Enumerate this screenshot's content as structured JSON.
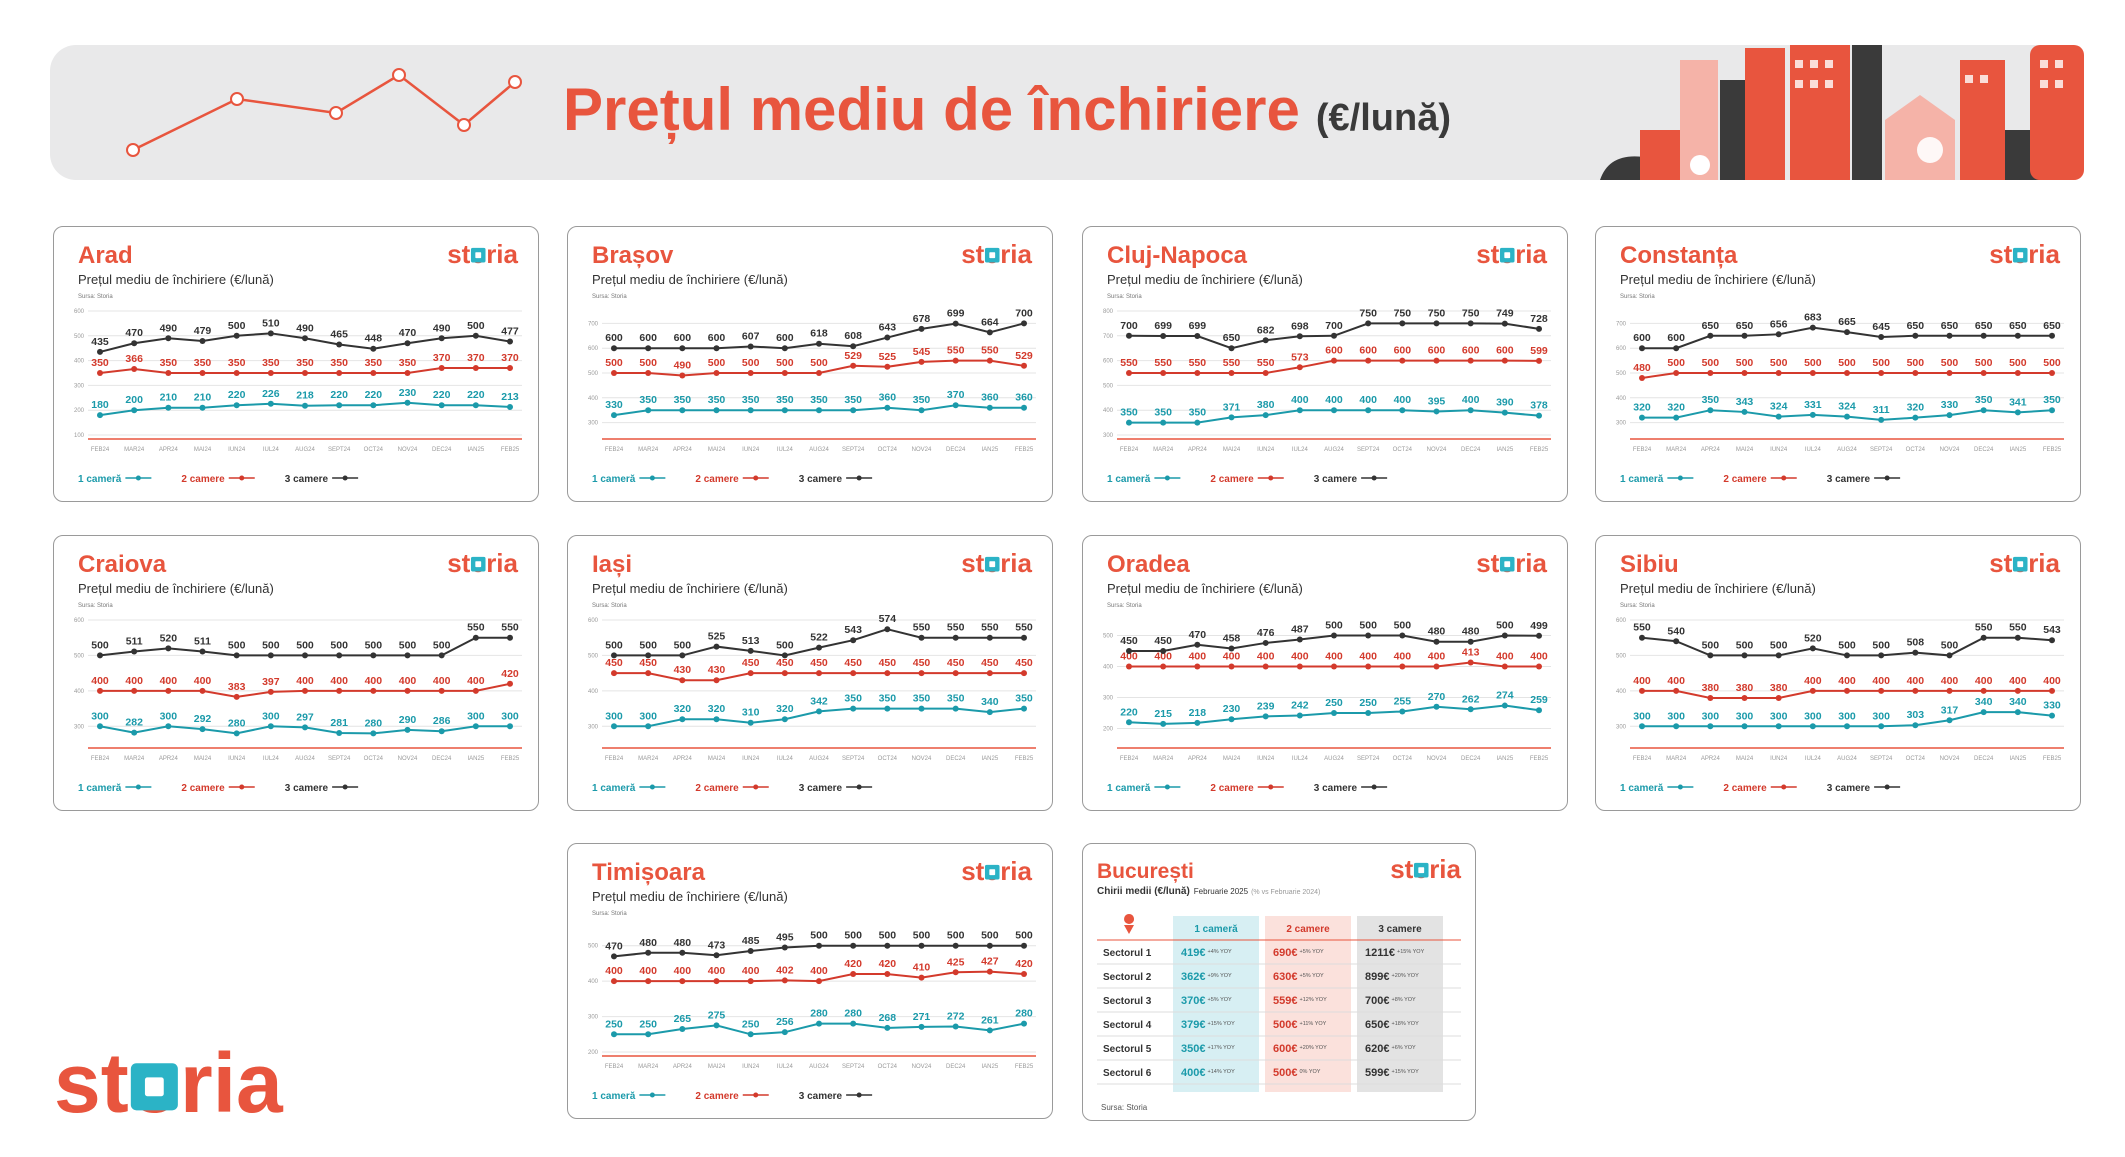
{
  "header": {
    "title": "Prețul mediu de închiriere",
    "unit": "(€/lună)"
  },
  "brand": "storia",
  "chart_data": [
    {
      "type": "line",
      "title": "Arad",
      "subtitle": "Prețul mediu de închiriere (€/lună)",
      "source": "Sursa: Storia",
      "categories": [
        "FEB24",
        "MAR24",
        "APR24",
        "MAI24",
        "IUN24",
        "IUL24",
        "AUG24",
        "SEPT24",
        "OCT24",
        "NOV24",
        "DEC24",
        "IAN25",
        "FEB25"
      ],
      "series": [
        {
          "name": "1 cameră",
          "color": "#1b9aaa",
          "values": [
            180,
            200,
            210,
            210,
            220,
            226,
            218,
            220,
            220,
            230,
            220,
            220,
            213
          ]
        },
        {
          "name": "2 camere",
          "color": "#d33a2c",
          "values": [
            350,
            366,
            350,
            350,
            350,
            350,
            350,
            350,
            350,
            350,
            370,
            370,
            370
          ]
        },
        {
          "name": "3 camere",
          "color": "#333333",
          "values": [
            435,
            470,
            490,
            479,
            500,
            510,
            490,
            465,
            448,
            470,
            490,
            500,
            477
          ]
        }
      ],
      "ylim": [
        100,
        600
      ],
      "yticks": [
        100,
        200,
        300,
        400,
        500,
        600
      ],
      "grid": true
    },
    {
      "type": "line",
      "title": "Brașov",
      "subtitle": "Prețul mediu de închiriere (€/lună)",
      "source": "Sursa: Storia",
      "categories": [
        "FEB24",
        "MAR24",
        "APR24",
        "MAI24",
        "IUN24",
        "IUL24",
        "AUG24",
        "SEPT24",
        "OCT24",
        "NOV24",
        "DEC24",
        "IAN25",
        "FEB25"
      ],
      "series": [
        {
          "name": "1 cameră",
          "color": "#1b9aaa",
          "values": [
            330,
            350,
            350,
            350,
            350,
            350,
            350,
            350,
            360,
            350,
            370,
            360,
            360
          ]
        },
        {
          "name": "2 camere",
          "color": "#d33a2c",
          "values": [
            500,
            500,
            490,
            500,
            500,
            500,
            500,
            529,
            525,
            545,
            550,
            550,
            529
          ]
        },
        {
          "name": "3 camere",
          "color": "#333333",
          "values": [
            600,
            600,
            600,
            600,
            607,
            600,
            618,
            608,
            643,
            678,
            699,
            664,
            700
          ]
        }
      ],
      "ylim": [
        250,
        750
      ],
      "yticks": [
        300,
        400,
        500,
        600,
        700
      ],
      "grid": true
    },
    {
      "type": "line",
      "title": "Cluj-Napoca",
      "subtitle": "Prețul mediu de închiriere (€/lună)",
      "source": "Sursa: Storia",
      "categories": [
        "FEB24",
        "MAR24",
        "APR24",
        "MAI24",
        "IUN24",
        "IUL24",
        "AUG24",
        "SEPT24",
        "OCT24",
        "NOV24",
        "DEC24",
        "IAN25",
        "FEB25"
      ],
      "series": [
        {
          "name": "1 cameră",
          "color": "#1b9aaa",
          "values": [
            350,
            350,
            350,
            371,
            380,
            400,
            400,
            400,
            400,
            395,
            400,
            390,
            378
          ]
        },
        {
          "name": "2 camere",
          "color": "#d33a2c",
          "values": [
            550,
            550,
            550,
            550,
            550,
            573,
            600,
            600,
            600,
            600,
            600,
            600,
            599
          ]
        },
        {
          "name": "3 camere",
          "color": "#333333",
          "values": [
            700,
            699,
            699,
            650,
            682,
            698,
            700,
            750,
            750,
            750,
            750,
            749,
            728
          ]
        }
      ],
      "ylim": [
        300,
        800
      ],
      "yticks": [
        300,
        400,
        500,
        600,
        700,
        800
      ],
      "grid": true
    },
    {
      "type": "line",
      "title": "Constanța",
      "subtitle": "Prețul mediu de închiriere (€/lună)",
      "source": "Sursa: Storia",
      "categories": [
        "FEB24",
        "MAR24",
        "APR24",
        "MAI24",
        "IUN24",
        "IUL24",
        "AUG24",
        "SEPT24",
        "OCT24",
        "NOV24",
        "DEC24",
        "IAN25",
        "FEB25"
      ],
      "series": [
        {
          "name": "1 cameră",
          "color": "#1b9aaa",
          "values": [
            320,
            320,
            350,
            343,
            324,
            331,
            324,
            311,
            320,
            330,
            350,
            341,
            350
          ]
        },
        {
          "name": "2 camere",
          "color": "#d33a2c",
          "values": [
            480,
            500,
            500,
            500,
            500,
            500,
            500,
            500,
            500,
            500,
            500,
            500,
            500
          ]
        },
        {
          "name": "3 camere",
          "color": "#333333",
          "values": [
            600,
            600,
            650,
            650,
            656,
            683,
            665,
            645,
            650,
            650,
            650,
            650,
            650
          ]
        }
      ],
      "ylim": [
        250,
        750
      ],
      "yticks": [
        300,
        400,
        500,
        600,
        700
      ],
      "grid": true
    },
    {
      "type": "line",
      "title": "Craiova",
      "subtitle": "Prețul mediu de închiriere (€/lună)",
      "source": "Sursa: Storia",
      "categories": [
        "FEB24",
        "MAR24",
        "APR24",
        "MAI24",
        "IUN24",
        "IUL24",
        "AUG24",
        "SEPT24",
        "OCT24",
        "NOV24",
        "DEC24",
        "IAN25",
        "FEB25"
      ],
      "series": [
        {
          "name": "1 cameră",
          "color": "#1b9aaa",
          "values": [
            300,
            282,
            300,
            292,
            280,
            300,
            297,
            281,
            280,
            290,
            286,
            300,
            300
          ]
        },
        {
          "name": "2 camere",
          "color": "#d33a2c",
          "values": [
            400,
            400,
            400,
            400,
            383,
            397,
            400,
            400,
            400,
            400,
            400,
            400,
            420
          ]
        },
        {
          "name": "3 camere",
          "color": "#333333",
          "values": [
            500,
            511,
            520,
            511,
            500,
            500,
            500,
            500,
            500,
            500,
            500,
            550,
            550
          ]
        }
      ],
      "ylim": [
        250,
        600
      ],
      "yticks": [
        300,
        400,
        500,
        600
      ],
      "grid": true
    },
    {
      "type": "line",
      "title": "Iași",
      "subtitle": "Prețul mediu de închiriere (€/lună)",
      "source": "Sursa: Storia",
      "categories": [
        "FEB24",
        "MAR24",
        "APR24",
        "MAI24",
        "IUN24",
        "IUL24",
        "AUG24",
        "SEPT24",
        "OCT24",
        "NOV24",
        "DEC24",
        "IAN25",
        "FEB25"
      ],
      "series": [
        {
          "name": "1 cameră",
          "color": "#1b9aaa",
          "values": [
            300,
            300,
            320,
            320,
            310,
            320,
            342,
            350,
            350,
            350,
            350,
            340,
            350
          ]
        },
        {
          "name": "2 camere",
          "color": "#d33a2c",
          "values": [
            450,
            450,
            430,
            430,
            450,
            450,
            450,
            450,
            450,
            450,
            450,
            450,
            450
          ]
        },
        {
          "name": "3 camere",
          "color": "#333333",
          "values": [
            500,
            500,
            500,
            525,
            513,
            500,
            522,
            543,
            574,
            550,
            550,
            550,
            550
          ]
        }
      ],
      "ylim": [
        250,
        600
      ],
      "yticks": [
        300,
        400,
        500,
        600
      ],
      "grid": true
    },
    {
      "type": "line",
      "title": "Oradea",
      "subtitle": "Prețul mediu de închiriere (€/lună)",
      "source": "Sursa: Storia",
      "categories": [
        "FEB24",
        "MAR24",
        "APR24",
        "MAI24",
        "IUN24",
        "IUL24",
        "AUG24",
        "SEPT24",
        "OCT24",
        "NOV24",
        "DEC24",
        "IAN25",
        "FEB25"
      ],
      "series": [
        {
          "name": "1 cameră",
          "color": "#1b9aaa",
          "values": [
            220,
            215,
            218,
            230,
            239,
            242,
            250,
            250,
            255,
            270,
            262,
            274,
            259
          ]
        },
        {
          "name": "2 camere",
          "color": "#d33a2c",
          "values": [
            400,
            400,
            400,
            400,
            400,
            400,
            400,
            400,
            400,
            400,
            413,
            400,
            400
          ]
        },
        {
          "name": "3 camere",
          "color": "#333333",
          "values": [
            450,
            450,
            470,
            458,
            476,
            487,
            500,
            500,
            500,
            480,
            480,
            500,
            499
          ]
        }
      ],
      "ylim": [
        150,
        550
      ],
      "yticks": [
        200,
        300,
        400,
        500
      ],
      "grid": true
    },
    {
      "type": "line",
      "title": "Sibiu",
      "subtitle": "Prețul mediu de închiriere (€/lună)",
      "source": "Sursa: Storia",
      "categories": [
        "FEB24",
        "MAR24",
        "APR24",
        "MAI24",
        "IUN24",
        "IUL24",
        "AUG24",
        "SEPT24",
        "OCT24",
        "NOV24",
        "DEC24",
        "IAN25",
        "FEB25"
      ],
      "series": [
        {
          "name": "1 cameră",
          "color": "#1b9aaa",
          "values": [
            300,
            300,
            300,
            300,
            300,
            300,
            300,
            300,
            303,
            317,
            340,
            340,
            330
          ]
        },
        {
          "name": "2 camere",
          "color": "#d33a2c",
          "values": [
            400,
            400,
            380,
            380,
            380,
            400,
            400,
            400,
            400,
            400,
            400,
            400,
            400
          ]
        },
        {
          "name": "3 camere",
          "color": "#333333",
          "values": [
            550,
            540,
            500,
            500,
            500,
            520,
            500,
            500,
            508,
            500,
            550,
            550,
            543
          ]
        }
      ],
      "ylim": [
        250,
        600
      ],
      "yticks": [
        300,
        400,
        500,
        600
      ],
      "grid": true
    },
    {
      "type": "line",
      "title": "Timișoara",
      "subtitle": "Prețul mediu de închiriere (€/lună)",
      "source": "Sursa: Storia",
      "categories": [
        "FEB24",
        "MAR24",
        "APR24",
        "MAI24",
        "IUN24",
        "IUL24",
        "AUG24",
        "SEPT24",
        "OCT24",
        "NOV24",
        "DEC24",
        "IAN25",
        "FEB25"
      ],
      "series": [
        {
          "name": "1 cameră",
          "color": "#1b9aaa",
          "values": [
            250,
            250,
            265,
            275,
            250,
            256,
            280,
            280,
            268,
            271,
            272,
            261,
            280
          ]
        },
        {
          "name": "2 camere",
          "color": "#d33a2c",
          "values": [
            400,
            400,
            400,
            400,
            400,
            402,
            400,
            420,
            420,
            410,
            425,
            427,
            420
          ]
        },
        {
          "name": "3 camere",
          "color": "#333333",
          "values": [
            470,
            480,
            480,
            473,
            485,
            495,
            500,
            500,
            500,
            500,
            500,
            500,
            500
          ]
        }
      ],
      "ylim": [
        200,
        550
      ],
      "yticks": [
        200,
        300,
        400,
        500
      ],
      "grid": true
    }
  ],
  "table": {
    "title": "București",
    "subtitle": "Chirii medii (€/lună)",
    "period": "Februarie 2025",
    "comparison": "(% vs Februarie 2024)",
    "columns": [
      "1 cameră",
      "2 camere",
      "3 camere"
    ],
    "rows": [
      {
        "label": "Sectorul 1",
        "cells": [
          {
            "value": "419€",
            "change": "+4% YOY"
          },
          {
            "value": "690€",
            "change": "+5% YOY"
          },
          {
            "value": "1211€",
            "change": "+15% YOY"
          }
        ]
      },
      {
        "label": "Sectorul 2",
        "cells": [
          {
            "value": "362€",
            "change": "+9% YOY"
          },
          {
            "value": "630€",
            "change": "+5% YOY"
          },
          {
            "value": "899€",
            "change": "+20% YOY"
          }
        ]
      },
      {
        "label": "Sectorul 3",
        "cells": [
          {
            "value": "370€",
            "change": "+5% YOY"
          },
          {
            "value": "559€",
            "change": "+12% YOY"
          },
          {
            "value": "700€",
            "change": "+8% YOY"
          }
        ]
      },
      {
        "label": "Sectorul 4",
        "cells": [
          {
            "value": "379€",
            "change": "+15% YOY"
          },
          {
            "value": "500€",
            "change": "+11% YOY"
          },
          {
            "value": "650€",
            "change": "+18% YOY"
          }
        ]
      },
      {
        "label": "Sectorul 5",
        "cells": [
          {
            "value": "350€",
            "change": "+17% YOY"
          },
          {
            "value": "600€",
            "change": "+20% YOY"
          },
          {
            "value": "620€",
            "change": "+6% YOY"
          }
        ]
      },
      {
        "label": "Sectorul 6",
        "cells": [
          {
            "value": "400€",
            "change": "+14% YOY"
          },
          {
            "value": "500€",
            "change": "0% YOY"
          },
          {
            "value": "599€",
            "change": "+15% YOY"
          }
        ]
      }
    ],
    "source": "Sursa: Storia"
  }
}
